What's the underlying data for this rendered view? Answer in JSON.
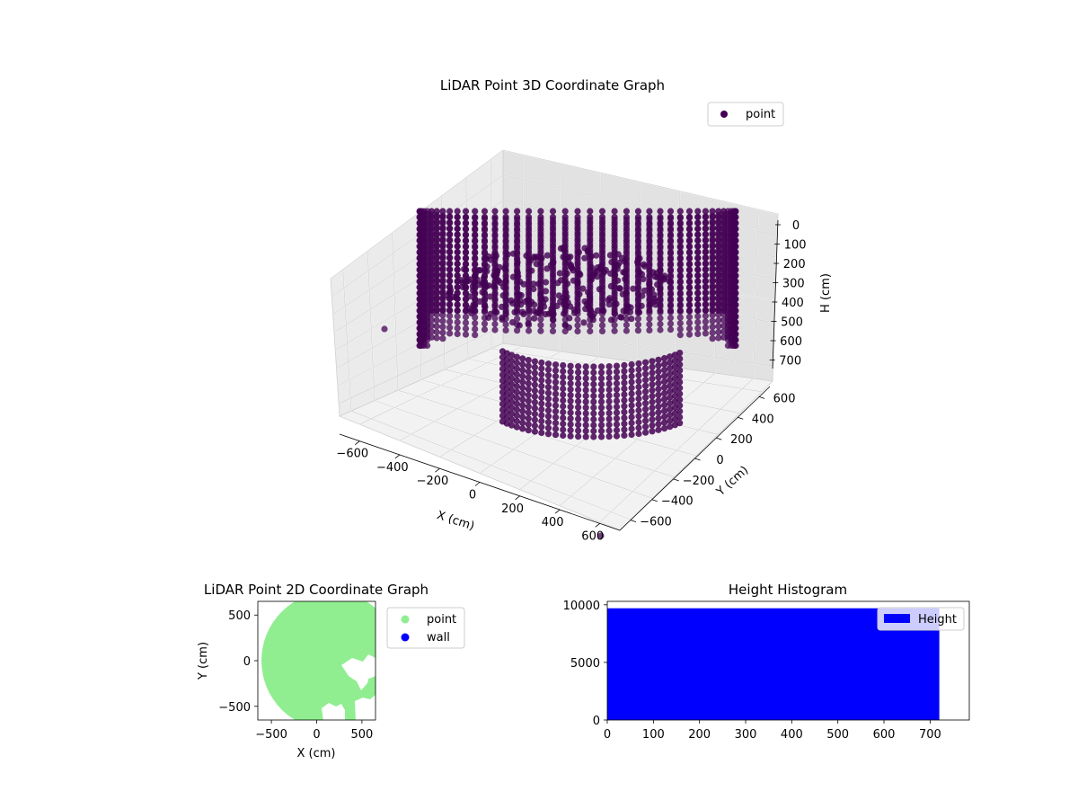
{
  "colors": {
    "point3d": "#440154",
    "point2d": "#90ee90",
    "wall": "#0000ff",
    "histogram": "#0000ff",
    "pane_left": "#ebebeb",
    "pane_right": "#e2e2e2",
    "pane_floor": "#f2f2f2"
  },
  "chart_data": [
    {
      "type": "scatter",
      "dimensions": 3,
      "title": "LiDAR Point 3D Coordinate Graph",
      "xlabel": "X (cm)",
      "ylabel": "Y (cm)",
      "zlabel": "H (cm)",
      "xlim": [
        -700,
        700
      ],
      "ylim": [
        -700,
        700
      ],
      "zlim": [
        750,
        0
      ],
      "x_ticks": [
        "−600",
        "−400",
        "−200",
        "0",
        "200",
        "400",
        "600"
      ],
      "y_ticks": [
        "−600",
        "−400",
        "−200",
        "0",
        "200",
        "400",
        "600"
      ],
      "z_ticks": [
        "0",
        "100",
        "200",
        "300",
        "400",
        "500",
        "600",
        "700"
      ],
      "z_inverted": true,
      "grid": true,
      "legend": {
        "position": "top-right",
        "entries": [
          "point"
        ]
      },
      "series": [
        {
          "name": "point",
          "description_shape": "cylindrical ring of points around the origin",
          "ring_radius": 590,
          "ring_height_range": [
            100,
            500
          ],
          "front_ring_height_range": [
            300,
            730
          ],
          "outliers": [
            {
              "x": -400,
              "y": 600,
              "h": 350
            },
            {
              "x": 650,
              "y": -650,
              "h": 720
            }
          ]
        }
      ]
    },
    {
      "type": "scatter",
      "title": "LiDAR Point 2D Coordinate Graph",
      "xlabel": "X (cm)",
      "ylabel": "Y (cm)",
      "xlim": [
        -650,
        650
      ],
      "ylim": [
        -650,
        650
      ],
      "x_ticks": [
        "−500",
        "0",
        "500"
      ],
      "y_ticks": [
        "500",
        "0",
        "−500"
      ],
      "legend": {
        "position": "outside-right",
        "entries": [
          "point",
          "wall"
        ]
      },
      "series": [
        {
          "name": "point",
          "shape": "filled disk",
          "center": [
            150,
            0
          ],
          "radius": 600
        },
        {
          "name": "wall",
          "points": []
        }
      ]
    },
    {
      "type": "bar",
      "subtype": "histogram",
      "title": "Height Histogram",
      "xlim": [
        0,
        785
      ],
      "ylim": [
        0,
        10300
      ],
      "x_ticks": [
        "0",
        "100",
        "200",
        "300",
        "400",
        "500",
        "600",
        "700"
      ],
      "y_ticks": [
        "0",
        "5000",
        "10000"
      ],
      "legend": {
        "position": "top-right",
        "entries": [
          "Height"
        ]
      },
      "series": [
        {
          "name": "Height",
          "bin_range": [
            0,
            720
          ],
          "count": 9700
        }
      ]
    }
  ]
}
